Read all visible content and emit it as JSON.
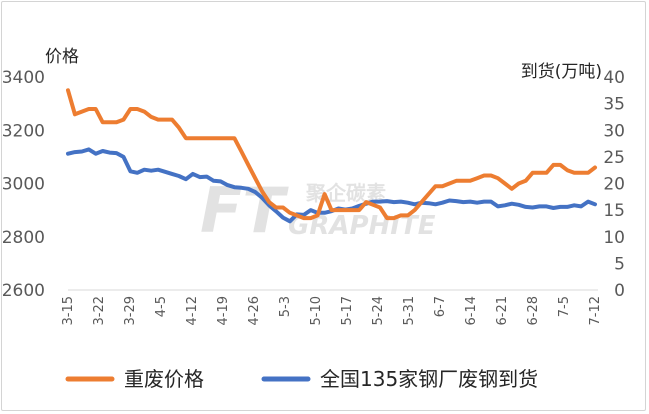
{
  "chart_data": {
    "type": "line",
    "y_left_title": "价格",
    "y_right_title": "到货(万吨)",
    "y_left_range": [
      2600,
      3400
    ],
    "y_left_ticks": [
      2600,
      2800,
      3000,
      3200,
      3400
    ],
    "y_right_range": [
      0,
      40
    ],
    "y_right_ticks": [
      0,
      5,
      10,
      15,
      20,
      25,
      30,
      35,
      40
    ],
    "x_tick_labels": [
      "3-15",
      "3-22",
      "3-29",
      "4-5",
      "4-12",
      "4-19",
      "4-26",
      "5-3",
      "5-10",
      "5-17",
      "5-24",
      "5-31",
      "6-7",
      "6-14",
      "6-21",
      "6-28",
      "7-5",
      "7-12"
    ],
    "grid": false,
    "legend_position": "bottom",
    "series": [
      {
        "name": "重废价格",
        "axis": "left",
        "color": "#ED7D31",
        "values": [
          3350,
          3260,
          3270,
          3280,
          3280,
          3230,
          3230,
          3230,
          3240,
          3280,
          3280,
          3270,
          3250,
          3240,
          3240,
          3240,
          3210,
          3170,
          3170,
          3170,
          3170,
          3170,
          3170,
          3170,
          3170,
          3120,
          3070,
          3020,
          2970,
          2930,
          2910,
          2910,
          2890,
          2880,
          2870,
          2870,
          2880,
          2960,
          2900,
          2900,
          2900,
          2900,
          2900,
          2930,
          2920,
          2910,
          2870,
          2870,
          2880,
          2880,
          2900,
          2930,
          2960,
          2990,
          2990,
          3000,
          3010,
          3010,
          3010,
          3020,
          3030,
          3030,
          3020,
          3000,
          2980,
          3000,
          3010,
          3040,
          3040,
          3040,
          3070,
          3070,
          3050,
          3040,
          3040,
          3040,
          3060
        ]
      },
      {
        "name": "全国135家钢厂废钢到货",
        "axis": "right",
        "color": "#4472C4",
        "values": [
          25.6,
          25.9,
          26.0,
          26.4,
          25.6,
          26.1,
          25.8,
          25.7,
          25.0,
          22.3,
          22.0,
          22.6,
          22.4,
          22.6,
          22.2,
          21.8,
          21.4,
          20.8,
          21.8,
          21.2,
          21.3,
          20.5,
          20.4,
          19.7,
          19.3,
          19.2,
          19.0,
          18.4,
          17.3,
          15.9,
          14.8,
          13.6,
          12.9,
          14.2,
          14.1,
          15.0,
          14.5,
          14.5,
          14.8,
          15.3,
          15.1,
          15.3,
          15.8,
          16.2,
          16.6,
          16.6,
          16.7,
          16.5,
          16.6,
          16.4,
          16.1,
          16.4,
          16.3,
          16.1,
          16.4,
          16.8,
          16.7,
          16.5,
          16.6,
          16.4,
          16.6,
          16.6,
          15.7,
          15.9,
          16.2,
          16.0,
          15.6,
          15.5,
          15.7,
          15.7,
          15.4,
          15.6,
          15.6,
          15.9,
          15.7,
          16.6,
          16.1
        ]
      }
    ]
  },
  "watermark": {
    "mark_letters": "FT",
    "brand_cn": "聚企碳素",
    "brand_en": "GRAPHITE"
  },
  "colors": {
    "price": "#ED7D31",
    "arrival": "#4472C4",
    "text": "#595959"
  }
}
